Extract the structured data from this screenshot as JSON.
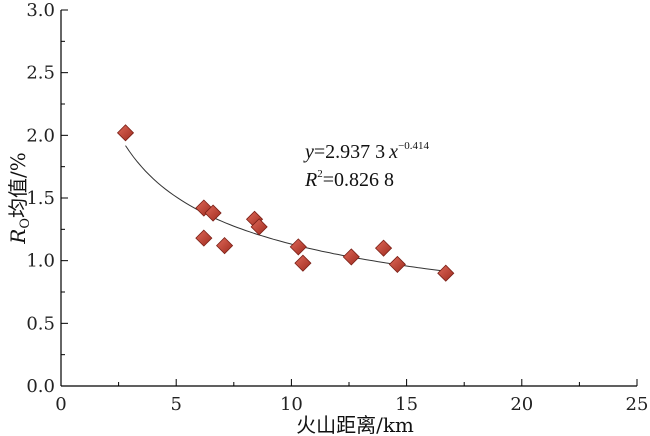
{
  "chart_data": {
    "type": "scatter",
    "xlabel": "火山距离/km",
    "ylabel": "R",
    "ylabel_sub": "O",
    "ylabel_rest": "均值/%",
    "xlim": [
      0,
      25
    ],
    "ylim": [
      0,
      3.0
    ],
    "x_ticks": [
      0,
      5,
      10,
      15,
      20,
      25
    ],
    "y_ticks": [
      0.0,
      0.5,
      1.0,
      1.5,
      2.0,
      2.5,
      3.0
    ],
    "x_tick_labels": [
      "0",
      "5",
      "10",
      "15",
      "20",
      "25"
    ],
    "y_tick_labels": [
      "0.0",
      "0.5",
      "1.0",
      "1.5",
      "2.0",
      "2.5",
      "3.0"
    ],
    "grid": false,
    "marker": "diamond",
    "marker_color": "#c0392b",
    "points": [
      {
        "x": 2.8,
        "y": 2.02
      },
      {
        "x": 6.2,
        "y": 1.42
      },
      {
        "x": 6.6,
        "y": 1.38
      },
      {
        "x": 6.2,
        "y": 1.18
      },
      {
        "x": 7.1,
        "y": 1.12
      },
      {
        "x": 8.4,
        "y": 1.33
      },
      {
        "x": 8.6,
        "y": 1.27
      },
      {
        "x": 10.3,
        "y": 1.11
      },
      {
        "x": 10.5,
        "y": 0.98
      },
      {
        "x": 12.6,
        "y": 1.03
      },
      {
        "x": 14.0,
        "y": 1.1
      },
      {
        "x": 14.6,
        "y": 0.97
      },
      {
        "x": 16.7,
        "y": 0.9
      }
    ],
    "fit": {
      "a": 2.9373,
      "b": -0.414,
      "x_range": [
        2.8,
        16.7
      ],
      "r2": 0.8268,
      "color": "#333333"
    },
    "annotation": {
      "eq_y": "y",
      "eq_mid": "=2.937 3",
      "eq_x": "x",
      "eq_exp": "−0.414",
      "r2_r": "R",
      "r2_sup": "2",
      "r2_val": "=0.826 8"
    }
  }
}
